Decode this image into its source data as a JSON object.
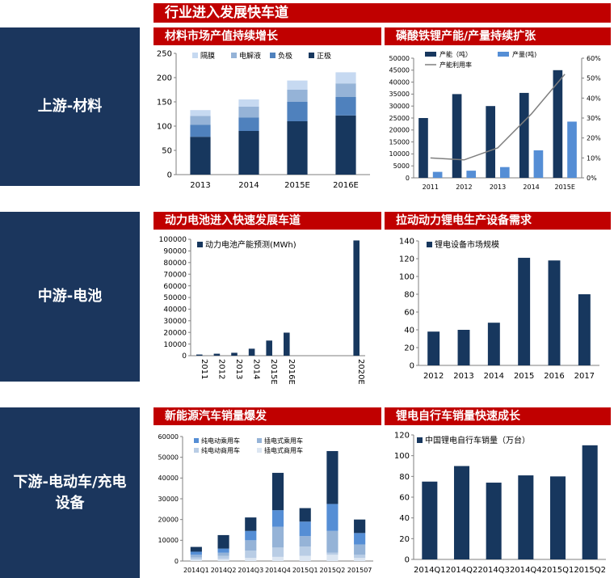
{
  "page": {
    "banner": "行业进入发展快车道",
    "rows": [
      {
        "label": "上游-材料"
      },
      {
        "label": "中游-电池"
      },
      {
        "label": "下游-电动车/充电设备"
      }
    ]
  },
  "chart_data": [
    {
      "type": "bar",
      "stacked": true,
      "title": "材料市场产值持续增长",
      "categories": [
        "2013",
        "2014",
        "2015E",
        "2016E"
      ],
      "series": [
        {
          "name": "正极",
          "values": [
            78,
            90,
            110,
            122
          ],
          "color": "#17375e"
        },
        {
          "name": "负极",
          "values": [
            25,
            28,
            40,
            38
          ],
          "color": "#4f81bd"
        },
        {
          "name": "电解液",
          "values": [
            18,
            22,
            25,
            28
          ],
          "color": "#95b3d7"
        },
        {
          "name": "隔膜",
          "values": [
            12,
            15,
            19,
            23
          ],
          "color": "#c6d9f1"
        }
      ],
      "ylim": [
        0,
        250
      ],
      "yticks": [
        0,
        50,
        100,
        150,
        200,
        250
      ],
      "legend_order": [
        "隔膜",
        "电解液",
        "负极",
        "正极"
      ],
      "legend": "top"
    },
    {
      "type": "bar",
      "title": "磷酸铁锂产能/产量持续扩张",
      "categories": [
        "2011",
        "2012",
        "2013",
        "2014",
        "2015E"
      ],
      "series": [
        {
          "name": "产能（吨）",
          "values": [
            25000,
            35000,
            30000,
            35500,
            45000
          ],
          "color": "#17375e"
        },
        {
          "name": "产量(吨)",
          "values": [
            2500,
            3000,
            4500,
            11500,
            23500
          ],
          "color": "#558ed5"
        }
      ],
      "line_series": {
        "name": "产能利用率",
        "values": [
          10,
          9,
          15,
          32,
          52
        ],
        "color": "#7f7f7f",
        "axis": "right"
      },
      "ylim": [
        0,
        50000
      ],
      "yticks": [
        0,
        5000,
        10000,
        15000,
        20000,
        25000,
        30000,
        35000,
        40000,
        45000,
        50000
      ],
      "y2lim": [
        0,
        60
      ],
      "y2ticks": [
        "0%",
        "10%",
        "20%",
        "30%",
        "40%",
        "50%",
        "60%"
      ],
      "legend": "top"
    },
    {
      "type": "bar",
      "title": "动力电池进入快速发展车道",
      "categories": [
        "2011",
        "2012",
        "2013",
        "2014",
        "2015E",
        "2016E",
        "",
        "",
        "",
        "2020E"
      ],
      "series": [
        {
          "name": "动力电池产能预测(MWh)",
          "values": [
            1000,
            1700,
            2500,
            6000,
            13000,
            19800,
            null,
            null,
            null,
            99000
          ],
          "color": "#17375e"
        }
      ],
      "ylim": [
        0,
        100000
      ],
      "yticks": [
        0,
        10000,
        20000,
        30000,
        40000,
        50000,
        60000,
        70000,
        80000,
        90000,
        100000
      ],
      "legend": "top-left"
    },
    {
      "type": "bar",
      "title": "拉动动力锂电生产设备需求",
      "categories": [
        "2012",
        "2013",
        "2014",
        "2015",
        "2016",
        "2017"
      ],
      "series": [
        {
          "name": "锂电设备市场规模",
          "values": [
            38,
            40,
            48,
            121,
            118,
            80
          ],
          "color": "#17375e"
        }
      ],
      "ylim": [
        0,
        140
      ],
      "yticks": [
        0,
        20,
        40,
        60,
        80,
        100,
        120,
        140
      ],
      "legend": "top-left"
    },
    {
      "type": "bar",
      "stacked": true,
      "title": "新能源汽车销量爆发",
      "categories": [
        "2014Q1",
        "2014Q2",
        "2014Q3",
        "2014Q4",
        "2015Q1",
        "2015Q2",
        "201507"
      ],
      "series": [
        {
          "name": "插电式商用车",
          "values": [
            700,
            1000,
            1500,
            2000,
            2500,
            3000,
            1500
          ],
          "color": "#dce6f2"
        },
        {
          "name": "纯电动商用车",
          "values": [
            1000,
            1500,
            3500,
            4500,
            4500,
            1000,
            1500
          ],
          "color": "#b9cde5"
        },
        {
          "name": "插电式乘用车",
          "values": [
            1300,
            1500,
            5000,
            10000,
            5000,
            10500,
            5000
          ],
          "color": "#95b3d7"
        },
        {
          "name": "纯电动乘用车",
          "values": [
            1500,
            2000,
            4500,
            8000,
            7000,
            13000,
            5500
          ],
          "color": "#558ed5"
        },
        {
          "name": "",
          "values": [
            2300,
            6500,
            6500,
            18000,
            6500,
            25500,
            6500
          ],
          "color": "#17375e"
        }
      ],
      "ylim": [
        0,
        60000
      ],
      "yticks": [
        0,
        10000,
        20000,
        30000,
        40000,
        50000,
        60000
      ],
      "legend_order": [
        "纯电动乘用车",
        "插电式乘用车",
        "纯电动商用车",
        "插电式商用车"
      ],
      "legend": "top"
    },
    {
      "type": "bar",
      "title": "锂电自行车销量快速成长",
      "categories": [
        "2014Q1",
        "2014Q2",
        "2014Q3",
        "2014Q4",
        "2015Q1",
        "2015Q2"
      ],
      "series": [
        {
          "name": "中国锂电自行车销量（万台）",
          "values": [
            75,
            90,
            74,
            81,
            80,
            110
          ],
          "color": "#17375e"
        }
      ],
      "ylim": [
        0,
        120
      ],
      "yticks": [
        0,
        20,
        40,
        60,
        80,
        100,
        120
      ],
      "legend": "top-left"
    }
  ]
}
